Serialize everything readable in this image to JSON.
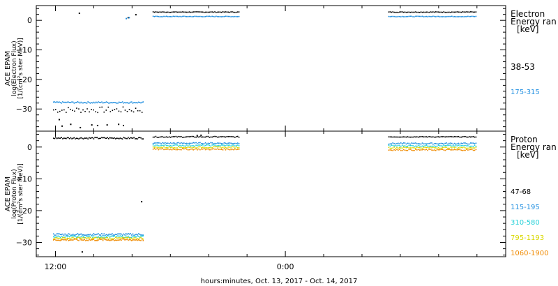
{
  "chart_data": [
    {
      "type": "scatter",
      "panel": "electron",
      "ylabel": [
        "ACE EPAM",
        "log(Electron Flux)",
        "[1/(cm²s ster MeV)]"
      ],
      "yticks": [
        0,
        -10,
        -20,
        -30
      ],
      "ylim": [
        -37.5,
        5
      ],
      "xlim_hours": [
        11,
        35.5
      ],
      "legend_title": [
        "Electron",
        "Energy ran",
        "[keV]"
      ],
      "series": [
        {
          "name": "38-53",
          "color": "#000000",
          "segments": [
            {
              "x_start": 11.9,
              "x_end": 16.6,
              "value": -30.3,
              "jitter": 1.0,
              "gap": 0.11
            },
            {
              "x_start": 17.1,
              "x_end": 21.6,
              "value": 2.8,
              "jitter": 0.1,
              "gap": 0.07
            },
            {
              "x_start": 29.4,
              "x_end": 34.0,
              "value": 2.8,
              "jitter": 0.1,
              "gap": 0.07
            }
          ],
          "points": [
            {
              "x": 12.2,
              "y": -33.6
            },
            {
              "x": 12.35,
              "y": -35.8
            },
            {
              "x": 12.8,
              "y": -35.2
            },
            {
              "x": 13.3,
              "y": -36.3
            },
            {
              "x": 13.9,
              "y": -35.4
            },
            {
              "x": 14.2,
              "y": -35.6
            },
            {
              "x": 14.7,
              "y": -35.4
            },
            {
              "x": 15.3,
              "y": -35.2
            },
            {
              "x": 15.55,
              "y": -35.6
            },
            {
              "x": 13.25,
              "y": 2.4
            },
            {
              "x": 15.8,
              "y": 0.9
            },
            {
              "x": 16.2,
              "y": 1.9
            }
          ]
        },
        {
          "name": "175-315",
          "color": "#1e8ee0",
          "segments": [
            {
              "x_start": 11.9,
              "x_end": 16.6,
              "value": -27.8,
              "jitter": 0.25,
              "gap": 0.06
            },
            {
              "x_start": 17.1,
              "x_end": 21.6,
              "value": 1.3,
              "jitter": 0.1,
              "gap": 0.07
            },
            {
              "x_start": 29.4,
              "x_end": 34.0,
              "value": 1.3,
              "jitter": 0.1,
              "gap": 0.07
            }
          ],
          "points": [
            {
              "x": 15.7,
              "y": 0.6
            },
            {
              "x": 15.85,
              "y": 0.9
            }
          ]
        }
      ]
    },
    {
      "type": "scatter",
      "panel": "proton",
      "ylabel": [
        "ACE EPAM",
        "log(Proton Flux)",
        "[1/(cm²s ster MeV)]"
      ],
      "yticks": [
        0,
        -10,
        -20,
        -30
      ],
      "ylim": [
        -34.5,
        5
      ],
      "xlim_hours": [
        11,
        35.5
      ],
      "xticks": [
        "12:00",
        "0:00",
        "12:00"
      ],
      "xlabel": "hours:minutes, Oct. 13, 2017 - Oct. 14, 2017",
      "legend_title": [
        "Proton",
        "Energy ran",
        "[keV]"
      ],
      "series": [
        {
          "name": "47-68",
          "color": "#000000",
          "segments": [
            {
              "x_start": 11.9,
              "x_end": 16.6,
              "value": 2.8,
              "jitter": 0.25,
              "gap": 0.06
            },
            {
              "x_start": 17.1,
              "x_end": 21.6,
              "value": 3.2,
              "jitter": 0.15,
              "gap": 0.07
            },
            {
              "x_start": 29.4,
              "x_end": 34.0,
              "value": 3.2,
              "jitter": 0.1,
              "gap": 0.07
            }
          ],
          "points": [
            {
              "x": 19.4,
              "y": 3.6
            },
            {
              "x": 19.6,
              "y": 3.7
            },
            {
              "x": 16.5,
              "y": -17.2
            },
            {
              "x": 13.4,
              "y": -33.0
            }
          ]
        },
        {
          "name": "115-195",
          "color": "#1e8ee0",
          "segments": [
            {
              "x_start": 11.9,
              "x_end": 16.6,
              "value": -27.5,
              "jitter": 0.3,
              "gap": 0.06
            },
            {
              "x_start": 17.1,
              "x_end": 21.6,
              "value": 1.2,
              "jitter": 0.2,
              "gap": 0.07
            },
            {
              "x_start": 29.4,
              "x_end": 34.0,
              "value": 1.1,
              "jitter": 0.2,
              "gap": 0.07
            }
          ],
          "points": []
        },
        {
          "name": "310-580",
          "color": "#22d0d8",
          "segments": [
            {
              "x_start": 11.9,
              "x_end": 16.6,
              "value": -28.2,
              "jitter": 0.3,
              "gap": 0.06
            },
            {
              "x_start": 17.1,
              "x_end": 21.6,
              "value": 0.5,
              "jitter": 0.2,
              "gap": 0.07
            },
            {
              "x_start": 29.4,
              "x_end": 34.0,
              "value": 0.4,
              "jitter": 0.2,
              "gap": 0.07
            }
          ],
          "points": []
        },
        {
          "name": "795-1193",
          "color": "#d8d800",
          "segments": [
            {
              "x_start": 11.9,
              "x_end": 16.6,
              "value": -28.7,
              "jitter": 0.3,
              "gap": 0.06
            },
            {
              "x_start": 17.1,
              "x_end": 21.6,
              "value": -0.1,
              "jitter": 0.2,
              "gap": 0.07
            },
            {
              "x_start": 29.4,
              "x_end": 34.0,
              "value": -0.2,
              "jitter": 0.2,
              "gap": 0.07
            }
          ],
          "points": []
        },
        {
          "name": "1060-1900",
          "color": "#f08a00",
          "segments": [
            {
              "x_start": 11.9,
              "x_end": 16.6,
              "value": -29.2,
              "jitter": 0.3,
              "gap": 0.06
            },
            {
              "x_start": 17.1,
              "x_end": 21.6,
              "value": -0.7,
              "jitter": 0.2,
              "gap": 0.07
            },
            {
              "x_start": 29.4,
              "x_end": 34.0,
              "value": -0.9,
              "jitter": 0.2,
              "gap": 0.07
            }
          ],
          "points": []
        }
      ]
    }
  ]
}
